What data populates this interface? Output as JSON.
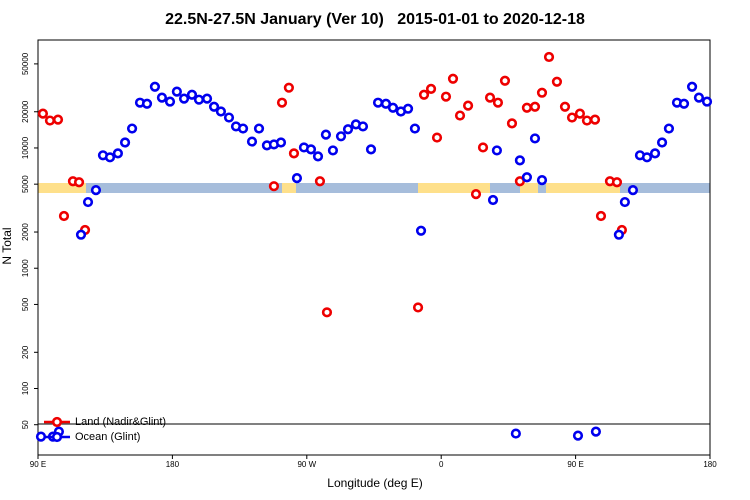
{
  "chart_data": {
    "type": "scatter",
    "title": "22.5N-27.5N January (Ver 10)   2015-01-01 to 2020-12-18",
    "xlabel": "Longitude (deg E)",
    "ylabel": "N Total",
    "xlim": [
      90,
      540
    ],
    "xticks": [
      {
        "value": 90,
        "label": "90 E"
      },
      180,
      {
        "value": 270,
        "label": "90 W"
      },
      {
        "value": 360,
        "label": "0"
      },
      {
        "value": 450,
        "label": "90 E"
      },
      {
        "value": 540,
        "label": "180"
      }
    ],
    "ylim": [
      28,
      79000
    ],
    "yscale": "log",
    "yticks": [
      50,
      100,
      200,
      500,
      1000,
      2000,
      5000,
      10000,
      20000,
      50000
    ],
    "legend": "bottom left",
    "series": [
      {
        "name": "Land (Nadir&Glint)",
        "color": "#ee0000",
        "x": [
          93.3,
          98,
          103.4,
          107.4,
          113.4,
          117.5,
          121.5,
          248,
          253.4,
          258,
          261.4,
          278.8,
          283.5,
          344.5,
          348.5,
          353.2,
          357.2,
          363.2,
          367.9,
          372.6,
          378,
          383.3,
          388,
          392.7,
          398,
          402.7,
          407.4,
          412.7,
          417.4,
          422.8,
          427.5,
          432.2,
          437.5,
          442.9,
          447.6,
          452.9,
          457.6,
          463,
          467,
          473,
          477.7,
          481
        ],
        "values": [
          19300,
          16900,
          17200,
          2720,
          5290,
          5190,
          2080,
          4810,
          23800,
          31700,
          9020,
          5290,
          430,
          472,
          27700,
          31000,
          12200,
          26700,
          37600,
          18600,
          22500,
          4130,
          10100,
          26200,
          23800,
          36200,
          16000,
          5290,
          21600,
          22000,
          28800,
          57100,
          35500,
          22000,
          17900,
          19300,
          16900,
          17200,
          2720,
          5290,
          5190,
          2080
        ]
      },
      {
        "name": "Ocean (Glint)",
        "color": "#0000ee",
        "x": [
          92,
          100,
          104,
          118.8,
          123.5,
          128.8,
          133.5,
          138.2,
          143.5,
          148.3,
          153,
          158.3,
          163,
          168.3,
          173,
          178.4,
          183,
          187.8,
          193.1,
          197.8,
          203.2,
          207.9,
          212.5,
          217.9,
          222.6,
          227.3,
          233.3,
          238,
          243.3,
          248,
          252.7,
          263.4,
          268.1,
          272.8,
          277.5,
          282.8,
          287.5,
          292.9,
          297.6,
          302.9,
          307.6,
          313,
          317.7,
          323,
          327.7,
          333,
          337.8,
          342.4,
          346.5,
          394.7,
          397.3,
          410,
          412.7,
          417.4,
          422.8,
          427.5,
          451.6,
          463.6,
          479,
          483,
          488.4,
          493.1,
          497.8,
          503.2,
          507.9,
          512.5,
          517.9,
          522.6,
          528,
          532.6,
          538
        ],
        "values": [
          39.8,
          39.8,
          43.8,
          1900,
          3550,
          4460,
          8690,
          8360,
          9020,
          11100,
          14500,
          23800,
          23300,
          32300,
          26200,
          24300,
          29400,
          25700,
          27700,
          25200,
          25700,
          22000,
          20100,
          17900,
          15100,
          14500,
          11300,
          14500,
          10500,
          10700,
          11100,
          5610,
          10100,
          9730,
          8510,
          12900,
          9540,
          12500,
          14300,
          15700,
          15100,
          9730,
          23800,
          23300,
          21600,
          20100,
          21200,
          14500,
          2050,
          3690,
          9540,
          42.2,
          7890,
          5710,
          12000,
          5400,
          40.6,
          43.8,
          1900,
          3550,
          4460,
          8690,
          8360,
          9020,
          11100,
          14500,
          23800,
          23300,
          32300,
          26200,
          24300
        ]
      }
    ]
  }
}
